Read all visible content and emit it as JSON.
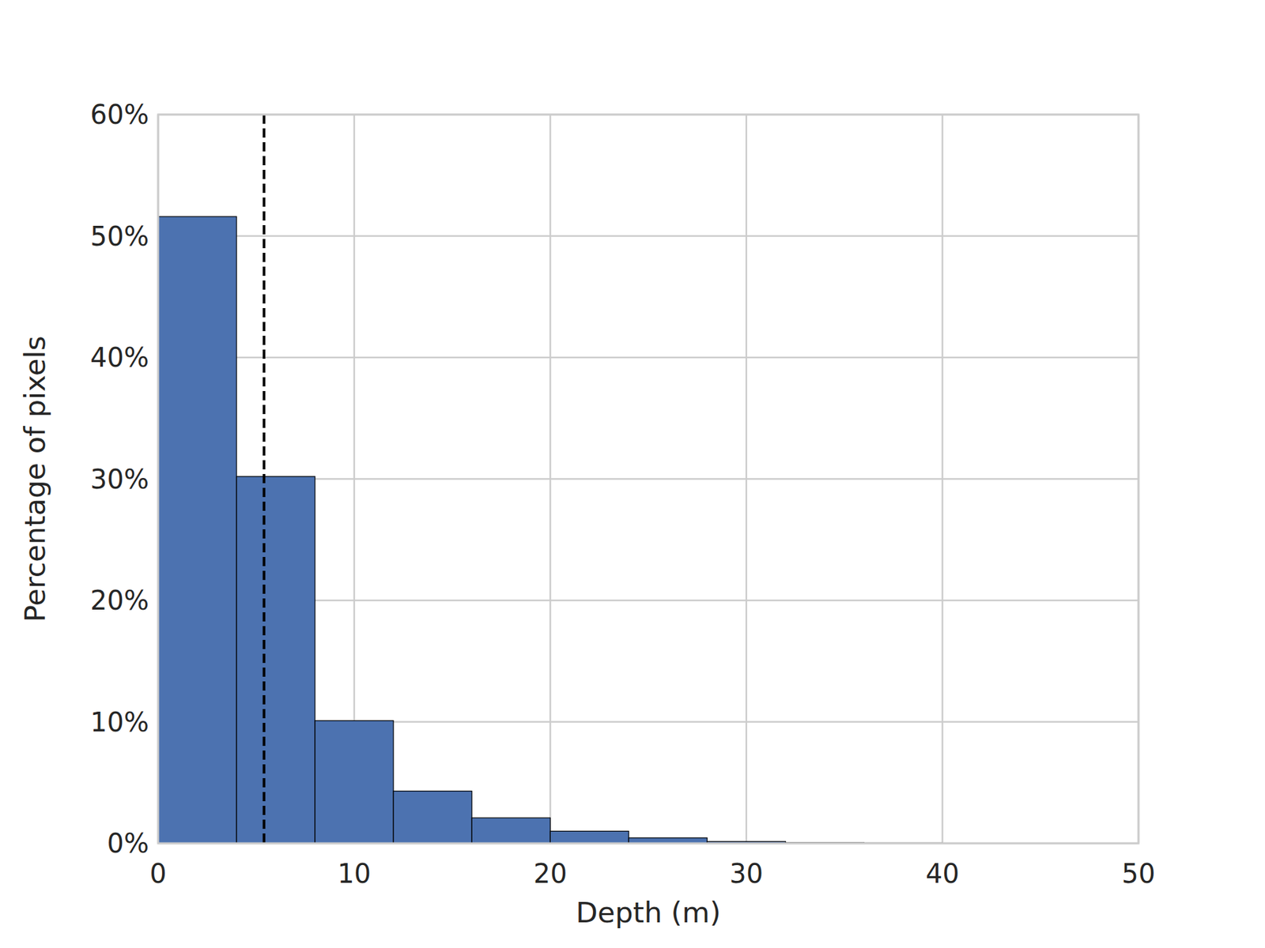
{
  "chart_data": {
    "type": "histogram",
    "x_label": "Depth (m)",
    "y_label": "Percentage of pixels",
    "bins": [
      0,
      4,
      8,
      12,
      16,
      20,
      24,
      28,
      32,
      36,
      40,
      44,
      48
    ],
    "counts": [
      51.6,
      30.2,
      10.1,
      4.3,
      2.1,
      1.0,
      0.45,
      0.15,
      0.05,
      0.03,
      0.02,
      0.01
    ],
    "color": "#4c72b0",
    "vline": 5.4,
    "xlim": [
      0,
      50
    ],
    "xticks": [
      0,
      10,
      20,
      30,
      40,
      50
    ],
    "ylim": [
      0,
      60
    ],
    "yticks": [
      {
        "value": 0,
        "label": "0%"
      },
      {
        "value": 10,
        "label": "10%"
      },
      {
        "value": 20,
        "label": "20%"
      },
      {
        "value": 30,
        "label": "30%"
      },
      {
        "value": 40,
        "label": "40%"
      },
      {
        "value": 50,
        "label": "50%"
      },
      {
        "value": 60,
        "label": "60%"
      }
    ],
    "grid": true
  }
}
